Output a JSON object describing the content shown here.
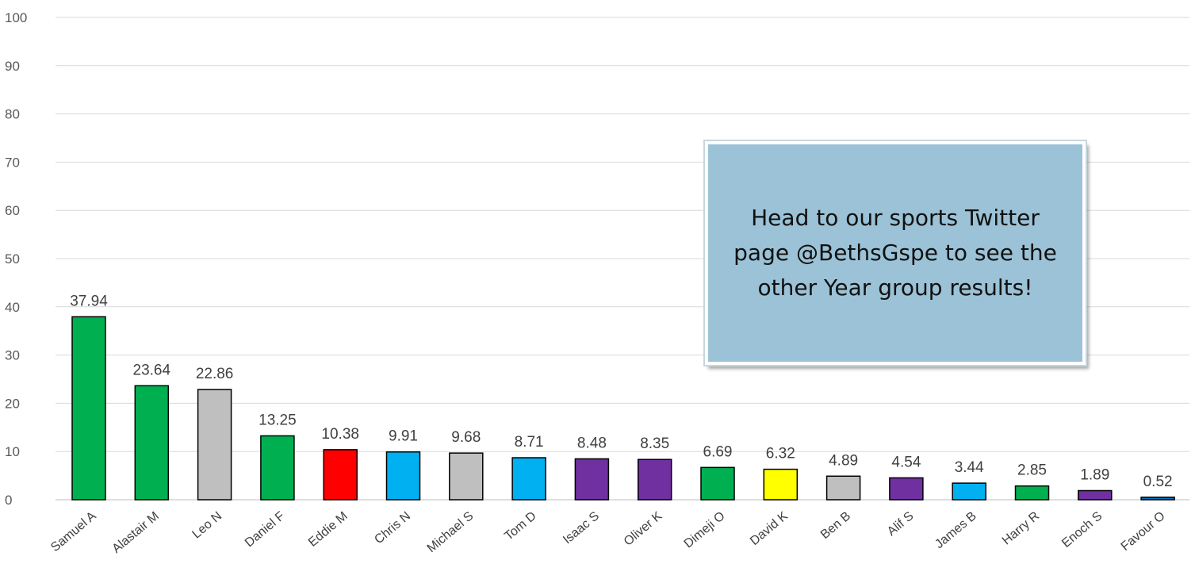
{
  "chart_data": {
    "type": "bar",
    "title": "",
    "xlabel": "",
    "ylabel": "",
    "ylim": [
      0,
      100
    ],
    "yticks": [
      0,
      10,
      20,
      30,
      40,
      50,
      60,
      70,
      80,
      90,
      100
    ],
    "grid": true,
    "categories": [
      "Samuel A",
      "Alastair M",
      "Leo N",
      "Daniel F",
      "Eddie M",
      "Chris N",
      "Michael S",
      "Tom D",
      "Isaac S",
      "Oliver K",
      "Dimeji O",
      "David K",
      "Ben B",
      "Alif S",
      "James B",
      "Harry R",
      "Enoch S",
      "Favour O"
    ],
    "values": [
      37.94,
      23.64,
      22.86,
      13.25,
      10.38,
      9.91,
      9.68,
      8.71,
      8.48,
      8.35,
      6.69,
      6.32,
      4.89,
      4.54,
      3.44,
      2.85,
      1.89,
      0.52
    ],
    "data_labels": [
      "37.94",
      "23.64",
      "22.86",
      "13.25",
      "10.38",
      "9.91",
      "9.68",
      "8.71",
      "8.48",
      "8.35",
      "6.69",
      "6.32",
      "4.89",
      "4.54",
      "3.44",
      "2.85",
      "1.89",
      "0.52"
    ],
    "bar_colors": [
      "#00b050",
      "#00b050",
      "#bfbfbf",
      "#00b050",
      "#ff0000",
      "#00b0f0",
      "#bfbfbf",
      "#00b0f0",
      "#7030a0",
      "#7030a0",
      "#00b050",
      "#ffff00",
      "#bfbfbf",
      "#7030a0",
      "#00b0f0",
      "#00b050",
      "#7030a0",
      "#0070c0"
    ],
    "annotation": "Head to our sports Twitter page @BethsGspe to see the other Year group results!"
  }
}
